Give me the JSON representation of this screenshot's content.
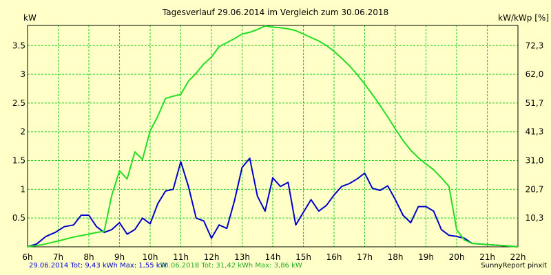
{
  "chart_data": {
    "type": "line",
    "title": "Tagesverlauf 29.06.2014 im Vergleich zum 30.06.2018",
    "ylabel_left": "kW",
    "ylabel_right": "kW/kWp [%]",
    "x_tick_labels": [
      "6h",
      "7h",
      "8h",
      "9h",
      "10h",
      "11h",
      "12h",
      "13h",
      "14h",
      "15h",
      "16h",
      "17h",
      "18h",
      "19h",
      "20h",
      "21h",
      "22h"
    ],
    "y_left_ticks": [
      0.5,
      1,
      1.5,
      2,
      2.5,
      3,
      3.5
    ],
    "y_left_tick_labels": [
      "0.5",
      "1",
      "1.5",
      "2",
      "2.5",
      "3",
      "3.5"
    ],
    "y_right_ticks": [
      0.5,
      1,
      1.5,
      2,
      2.5,
      3,
      3.5
    ],
    "y_right_tick_labels": [
      "10,3",
      "20,7",
      "31,0",
      "41,3",
      "51,7",
      "62,0",
      "72,3"
    ],
    "xlim": [
      6,
      22
    ],
    "ylim": [
      0,
      3.85
    ],
    "grid": true,
    "series": [
      {
        "name": "29.06.2014",
        "color": "#0000cc",
        "points": [
          [
            6.0,
            0.0
          ],
          [
            6.3,
            0.05
          ],
          [
            6.6,
            0.18
          ],
          [
            6.9,
            0.25
          ],
          [
            7.2,
            0.35
          ],
          [
            7.5,
            0.38
          ],
          [
            7.75,
            0.55
          ],
          [
            8.0,
            0.55
          ],
          [
            8.25,
            0.35
          ],
          [
            8.5,
            0.25
          ],
          [
            8.75,
            0.3
          ],
          [
            9.0,
            0.42
          ],
          [
            9.25,
            0.22
          ],
          [
            9.5,
            0.3
          ],
          [
            9.75,
            0.5
          ],
          [
            10.0,
            0.4
          ],
          [
            10.25,
            0.75
          ],
          [
            10.5,
            0.97
          ],
          [
            10.75,
            1.0
          ],
          [
            11.0,
            1.48
          ],
          [
            11.25,
            1.05
          ],
          [
            11.5,
            0.5
          ],
          [
            11.75,
            0.45
          ],
          [
            12.0,
            0.15
          ],
          [
            12.25,
            0.38
          ],
          [
            12.5,
            0.32
          ],
          [
            12.75,
            0.8
          ],
          [
            13.0,
            1.38
          ],
          [
            13.25,
            1.54
          ],
          [
            13.5,
            0.88
          ],
          [
            13.75,
            0.62
          ],
          [
            14.0,
            1.2
          ],
          [
            14.25,
            1.05
          ],
          [
            14.5,
            1.12
          ],
          [
            14.75,
            0.38
          ],
          [
            15.0,
            0.6
          ],
          [
            15.25,
            0.82
          ],
          [
            15.5,
            0.62
          ],
          [
            15.75,
            0.72
          ],
          [
            16.0,
            0.9
          ],
          [
            16.25,
            1.05
          ],
          [
            16.5,
            1.1
          ],
          [
            16.75,
            1.18
          ],
          [
            17.0,
            1.28
          ],
          [
            17.25,
            1.02
          ],
          [
            17.5,
            0.98
          ],
          [
            17.75,
            1.06
          ],
          [
            18.0,
            0.82
          ],
          [
            18.25,
            0.55
          ],
          [
            18.5,
            0.42
          ],
          [
            18.75,
            0.7
          ],
          [
            19.0,
            0.7
          ],
          [
            19.25,
            0.62
          ],
          [
            19.5,
            0.3
          ],
          [
            19.75,
            0.2
          ],
          [
            20.0,
            0.18
          ],
          [
            20.25,
            0.15
          ],
          [
            20.5,
            0.06
          ],
          [
            21.0,
            0.04
          ],
          [
            21.5,
            0.02
          ],
          [
            22.0,
            0.0
          ]
        ]
      },
      {
        "name": "30.06.2018",
        "color": "#22dd22",
        "points": [
          [
            6.0,
            0.0
          ],
          [
            6.5,
            0.04
          ],
          [
            7.0,
            0.1
          ],
          [
            7.5,
            0.17
          ],
          [
            8.0,
            0.22
          ],
          [
            8.25,
            0.25
          ],
          [
            8.5,
            0.27
          ],
          [
            8.75,
            0.9
          ],
          [
            9.0,
            1.32
          ],
          [
            9.25,
            1.18
          ],
          [
            9.5,
            1.65
          ],
          [
            9.75,
            1.52
          ],
          [
            10.0,
            2.02
          ],
          [
            10.25,
            2.27
          ],
          [
            10.5,
            2.58
          ],
          [
            10.75,
            2.62
          ],
          [
            11.0,
            2.65
          ],
          [
            11.25,
            2.88
          ],
          [
            11.5,
            3.02
          ],
          [
            11.75,
            3.18
          ],
          [
            12.0,
            3.3
          ],
          [
            12.25,
            3.48
          ],
          [
            12.5,
            3.55
          ],
          [
            12.75,
            3.62
          ],
          [
            13.0,
            3.7
          ],
          [
            13.25,
            3.73
          ],
          [
            13.5,
            3.78
          ],
          [
            13.75,
            3.84
          ],
          [
            14.0,
            3.82
          ],
          [
            14.25,
            3.81
          ],
          [
            14.5,
            3.79
          ],
          [
            14.75,
            3.76
          ],
          [
            15.0,
            3.7
          ],
          [
            15.25,
            3.64
          ],
          [
            15.5,
            3.58
          ],
          [
            15.75,
            3.5
          ],
          [
            16.0,
            3.4
          ],
          [
            16.25,
            3.28
          ],
          [
            16.5,
            3.15
          ],
          [
            16.75,
            3.0
          ],
          [
            17.0,
            2.83
          ],
          [
            17.25,
            2.65
          ],
          [
            17.5,
            2.46
          ],
          [
            17.75,
            2.26
          ],
          [
            18.0,
            2.05
          ],
          [
            18.25,
            1.85
          ],
          [
            18.5,
            1.68
          ],
          [
            18.75,
            1.55
          ],
          [
            19.0,
            1.44
          ],
          [
            19.25,
            1.34
          ],
          [
            19.5,
            1.2
          ],
          [
            19.75,
            1.05
          ],
          [
            20.0,
            0.3
          ],
          [
            20.25,
            0.12
          ],
          [
            20.5,
            0.06
          ],
          [
            21.0,
            0.04
          ],
          [
            21.5,
            0.02
          ],
          [
            22.0,
            0.0
          ]
        ]
      }
    ]
  },
  "footer": {
    "series1_stats": "29.06.2014 Tot: 9,43 kWh Max: 1,55 kW",
    "series2_stats": "30.06.2018 Tot: 31,42 kWh Max: 3,86 kW",
    "brand": "SunnyReport pinxit"
  },
  "colors": {
    "background": "#ffffc8",
    "grid": "#22cc22",
    "frame": "#000000"
  }
}
